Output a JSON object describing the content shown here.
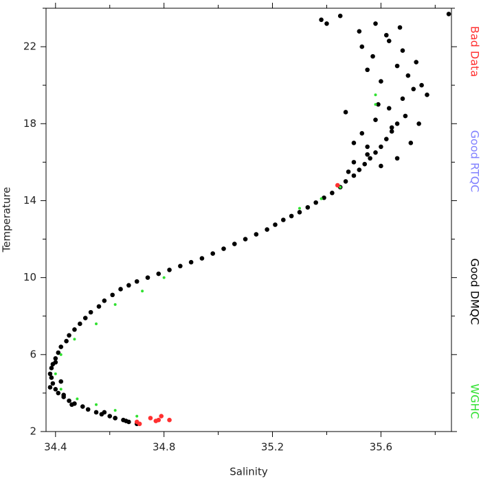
{
  "chart_data": {
    "type": "scatter",
    "x_label": "Salinity",
    "y_label": "Temperature",
    "xlim": [
      34.365,
      35.86
    ],
    "ylim": [
      2,
      24
    ],
    "xticks": [
      34.4,
      34.8,
      35.2,
      35.6
    ],
    "xticks_minor": [
      34.6,
      35.0,
      35.4,
      35.8
    ],
    "yticks": [
      2,
      6,
      10,
      14,
      18,
      22
    ],
    "yticks_minor": [
      4,
      8,
      12,
      16,
      20,
      24
    ],
    "legend": "right",
    "series": [
      {
        "name": "Bad Data",
        "color": "#ff3030",
        "x": [
          34.71,
          34.7,
          34.75,
          34.78,
          34.79,
          34.82,
          34.77,
          35.44
        ],
        "y": [
          2.4,
          2.5,
          2.7,
          2.6,
          2.8,
          2.6,
          2.55,
          14.8
        ]
      },
      {
        "name": "Good RTQC",
        "color": "#8080ff",
        "x": [],
        "y": []
      },
      {
        "name": "Good DMQC",
        "color": "#000000",
        "x": [
          34.7,
          34.67,
          34.65,
          34.62,
          34.6,
          34.57,
          34.55,
          34.52,
          34.5,
          34.47,
          34.45,
          34.43,
          34.41,
          34.4,
          34.39,
          34.385,
          34.38,
          34.385,
          34.39,
          34.4,
          34.41,
          34.42,
          34.44,
          34.45,
          34.47,
          34.49,
          34.51,
          34.53,
          34.56,
          34.58,
          34.61,
          34.64,
          34.67,
          34.7,
          34.74,
          34.78,
          34.82,
          34.86,
          34.9,
          34.94,
          34.98,
          35.02,
          35.06,
          35.1,
          35.14,
          35.18,
          35.21,
          35.24,
          35.27,
          35.3,
          35.33,
          35.36,
          35.39,
          35.42,
          35.45,
          35.47,
          35.5,
          35.52,
          35.54,
          35.56,
          35.58,
          35.6,
          35.62,
          35.64,
          35.66,
          35.55,
          35.5,
          35.48,
          35.53,
          35.58,
          35.63,
          35.68,
          35.72,
          35.7,
          35.66,
          35.6,
          35.57,
          35.53,
          35.62,
          35.67,
          35.73,
          35.75,
          35.69,
          35.64,
          35.59,
          35.55,
          35.52,
          35.58,
          35.63,
          35.68,
          35.6,
          35.55,
          35.5,
          35.47,
          35.45,
          35.38,
          35.4,
          35.66,
          35.71,
          35.85,
          35.77,
          35.74,
          34.42,
          34.38,
          34.4,
          34.43,
          34.46,
          34.62,
          34.58,
          34.66
        ],
        "y": [
          2.4,
          2.5,
          2.6,
          2.7,
          2.8,
          2.9,
          3.0,
          3.15,
          3.3,
          3.45,
          3.6,
          3.8,
          4.0,
          4.2,
          4.5,
          4.8,
          5.0,
          5.3,
          5.5,
          5.8,
          6.1,
          6.4,
          6.7,
          7.0,
          7.3,
          7.6,
          7.9,
          8.2,
          8.5,
          8.8,
          9.1,
          9.4,
          9.6,
          9.8,
          10.0,
          10.2,
          10.4,
          10.6,
          10.8,
          11.0,
          11.25,
          11.5,
          11.75,
          12.0,
          12.25,
          12.5,
          12.75,
          13.0,
          13.2,
          13.4,
          13.65,
          13.9,
          14.15,
          14.4,
          14.7,
          15.0,
          15.3,
          15.6,
          15.9,
          16.2,
          16.5,
          16.8,
          17.2,
          17.6,
          18.0,
          16.8,
          16.0,
          15.5,
          17.5,
          18.2,
          18.8,
          19.3,
          19.8,
          20.5,
          21.0,
          20.2,
          21.5,
          22.0,
          22.6,
          23.0,
          21.2,
          20.0,
          18.4,
          17.8,
          19.0,
          20.8,
          22.8,
          23.2,
          22.3,
          21.8,
          15.8,
          16.4,
          17.0,
          18.6,
          23.6,
          23.4,
          23.2,
          16.2,
          17.0,
          23.7,
          19.5,
          18.0,
          4.6,
          4.3,
          5.6,
          3.9,
          3.4,
          2.7,
          3.0,
          2.55
        ]
      },
      {
        "name": "WGHC",
        "color": "#30e030",
        "x": [
          34.7,
          34.62,
          34.55,
          34.48,
          34.42,
          34.4,
          34.42,
          34.47,
          34.55,
          34.62,
          34.72,
          34.8,
          35.3,
          35.38,
          35.45,
          35.58,
          35.58
        ],
        "y": [
          2.8,
          3.1,
          3.4,
          3.7,
          4.2,
          5.0,
          6.0,
          6.8,
          7.6,
          8.6,
          9.3,
          10.0,
          13.6,
          14.1,
          14.7,
          19.0,
          19.5
        ]
      }
    ]
  }
}
